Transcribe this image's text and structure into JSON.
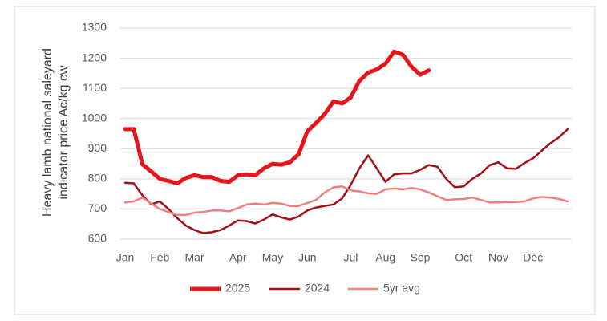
{
  "chart_data": {
    "type": "line",
    "y_label": [
      "Heavy lamb national saleyard",
      "indicator price Ac/kg cw"
    ],
    "categories": [
      "Jan",
      null,
      null,
      null,
      "Feb",
      null,
      null,
      null,
      "Mar",
      null,
      null,
      null,
      null,
      "Apr",
      null,
      null,
      null,
      "May",
      null,
      null,
      null,
      "Jun",
      null,
      null,
      null,
      null,
      "Jul",
      null,
      null,
      null,
      "Aug",
      null,
      null,
      null,
      "Sep",
      null,
      null,
      null,
      null,
      "Oct",
      null,
      null,
      null,
      "Nov",
      null,
      null,
      null,
      "Dec",
      null,
      null,
      null,
      null
    ],
    "series": [
      {
        "name": "2025",
        "color": "#e8141b",
        "values": [
          965,
          965,
          848,
          825,
          800,
          793,
          785,
          803,
          812,
          806,
          806,
          793,
          790,
          812,
          815,
          812,
          835,
          850,
          847,
          855,
          882,
          958,
          985,
          1015,
          1057,
          1050,
          1070,
          1125,
          1152,
          1163,
          1182,
          1222,
          1212,
          1172,
          1145,
          1160,
          null,
          null,
          null,
          null,
          null,
          null,
          null,
          null,
          null,
          null,
          null,
          null,
          null,
          null,
          null,
          null
        ]
      },
      {
        "name": "2024",
        "color": "#a50f15",
        "values": [
          787,
          785,
          745,
          715,
          725,
          700,
          670,
          645,
          630,
          620,
          623,
          630,
          645,
          662,
          660,
          652,
          665,
          682,
          672,
          665,
          675,
          695,
          705,
          710,
          715,
          735,
          780,
          835,
          878,
          835,
          790,
          815,
          818,
          818,
          830,
          846,
          840,
          800,
          772,
          775,
          800,
          818,
          845,
          855,
          835,
          833,
          852,
          868,
          893,
          918,
          938,
          965
        ]
      },
      {
        "name": "5yr avg",
        "color": "#f08080",
        "values": [
          722,
          725,
          738,
          718,
          700,
          690,
          680,
          680,
          688,
          690,
          695,
          695,
          692,
          703,
          715,
          718,
          715,
          720,
          718,
          710,
          710,
          720,
          730,
          755,
          772,
          775,
          762,
          758,
          752,
          750,
          765,
          768,
          765,
          770,
          765,
          755,
          742,
          730,
          732,
          733,
          738,
          730,
          722,
          722,
          723,
          723,
          725,
          735,
          740,
          738,
          733,
          725
        ]
      }
    ],
    "ylim": [
      600,
      1300
    ],
    "yticks": [
      600,
      700,
      800,
      900,
      1000,
      1100,
      1200,
      1300
    ],
    "grid": true,
    "legend": "bottom"
  }
}
